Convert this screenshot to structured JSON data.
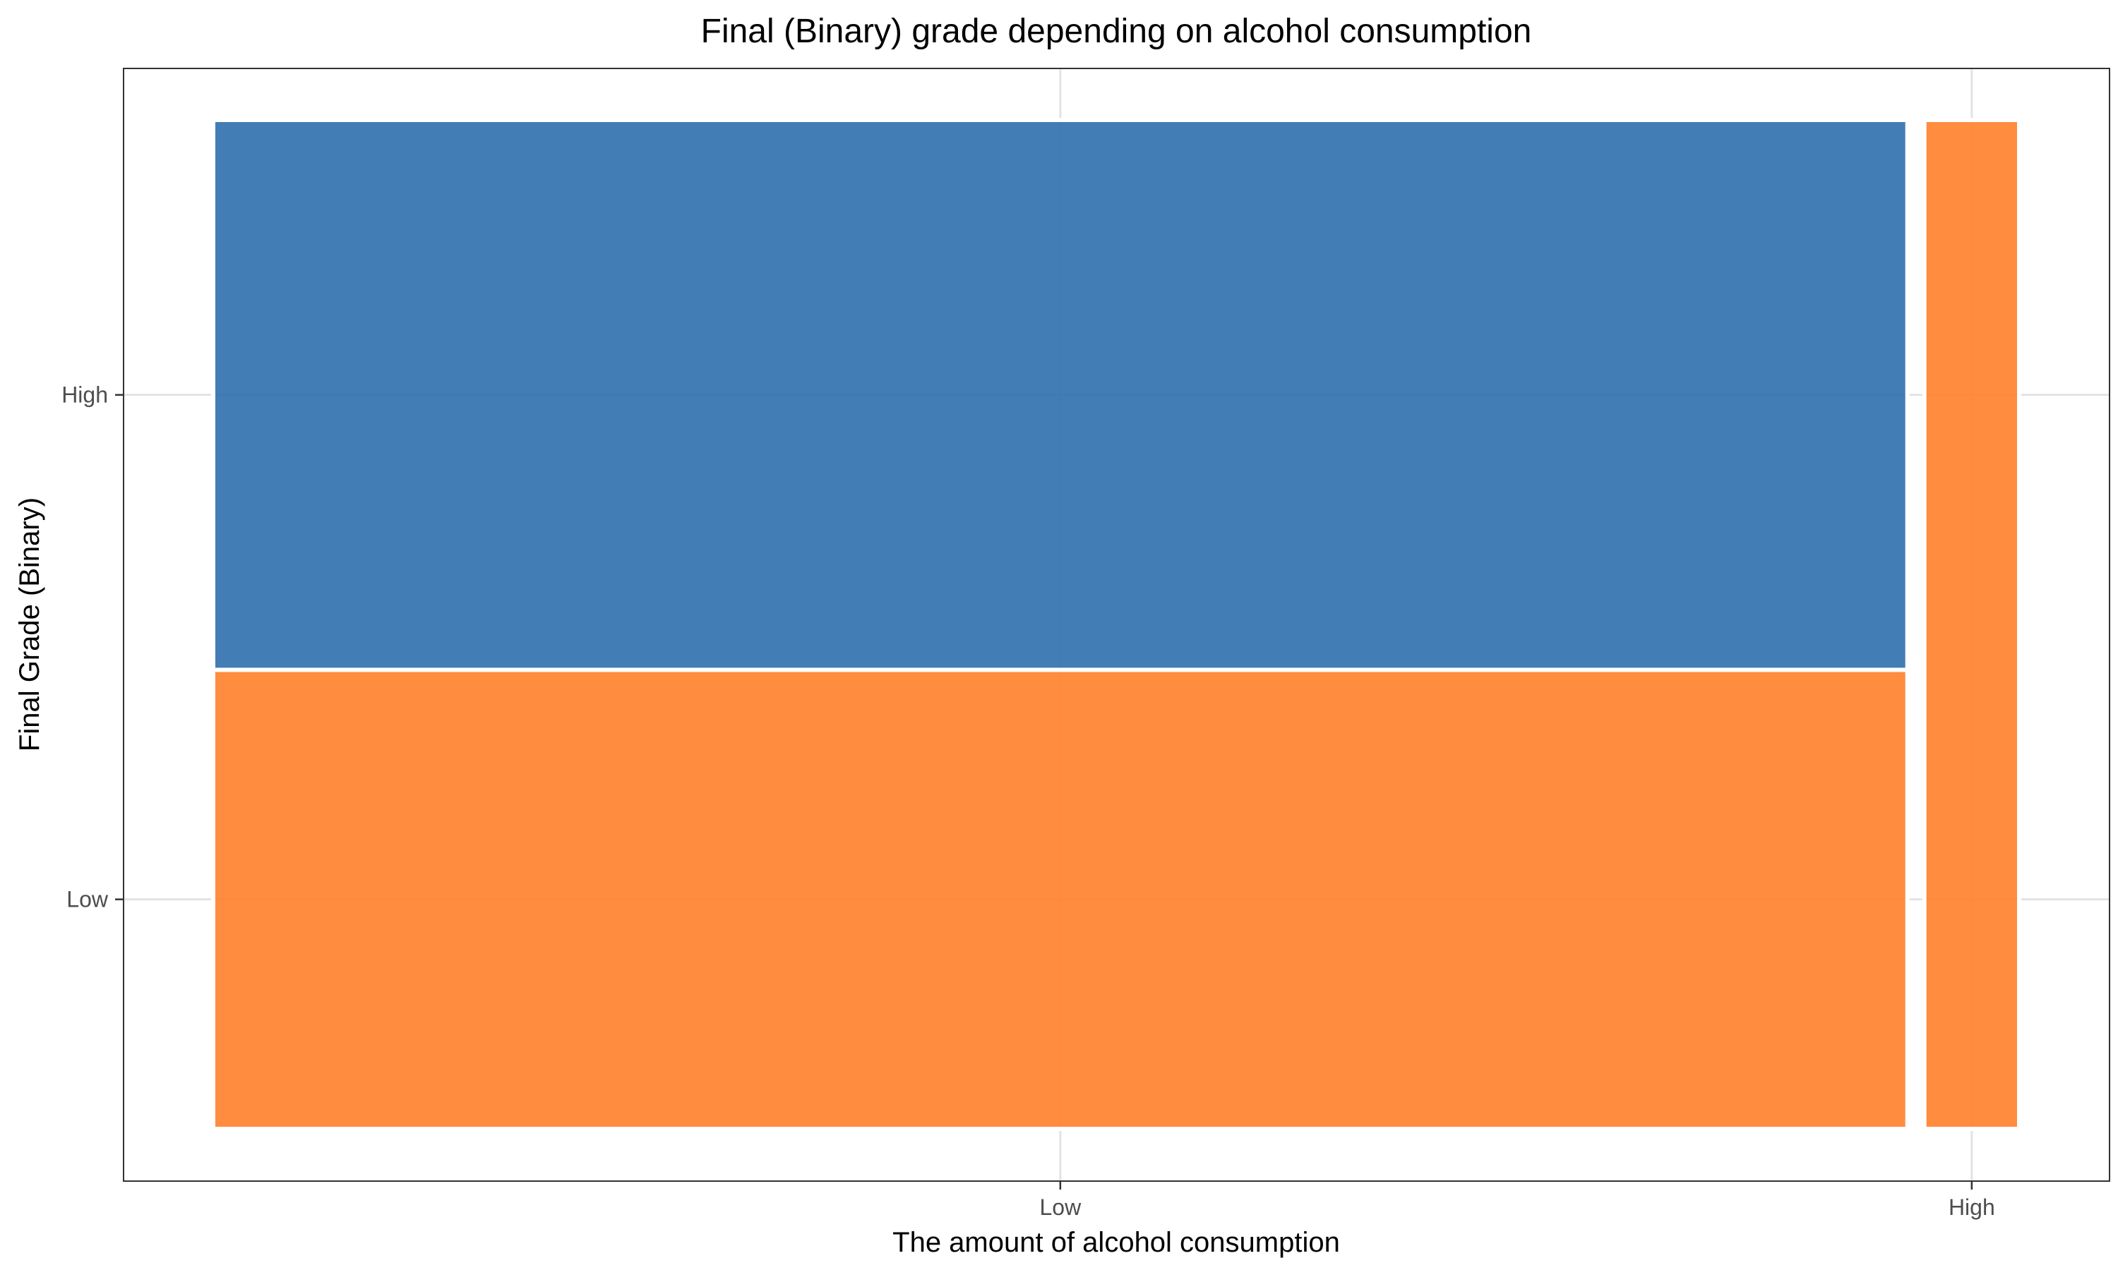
{
  "chart_data": {
    "type": "mosaic",
    "title": "Final (Binary) grade depending on alcohol consumption",
    "xlabel": "The amount of alcohol consumption",
    "ylabel": "Final Grade (Binary)",
    "x_categories": [
      "Low",
      "High"
    ],
    "y_categories": [
      "Low",
      "High"
    ],
    "x_widths": [
      0.947,
      0.053
    ],
    "proportions": {
      "Low": {
        "Low": 0.455,
        "High": 0.545
      },
      "High": {
        "Low": 1.0,
        "High": 0.0
      }
    },
    "fill_colors": {
      "Low": "#ff7f2a",
      "High": "#2f6fad"
    },
    "grid": true,
    "legend": "none"
  }
}
